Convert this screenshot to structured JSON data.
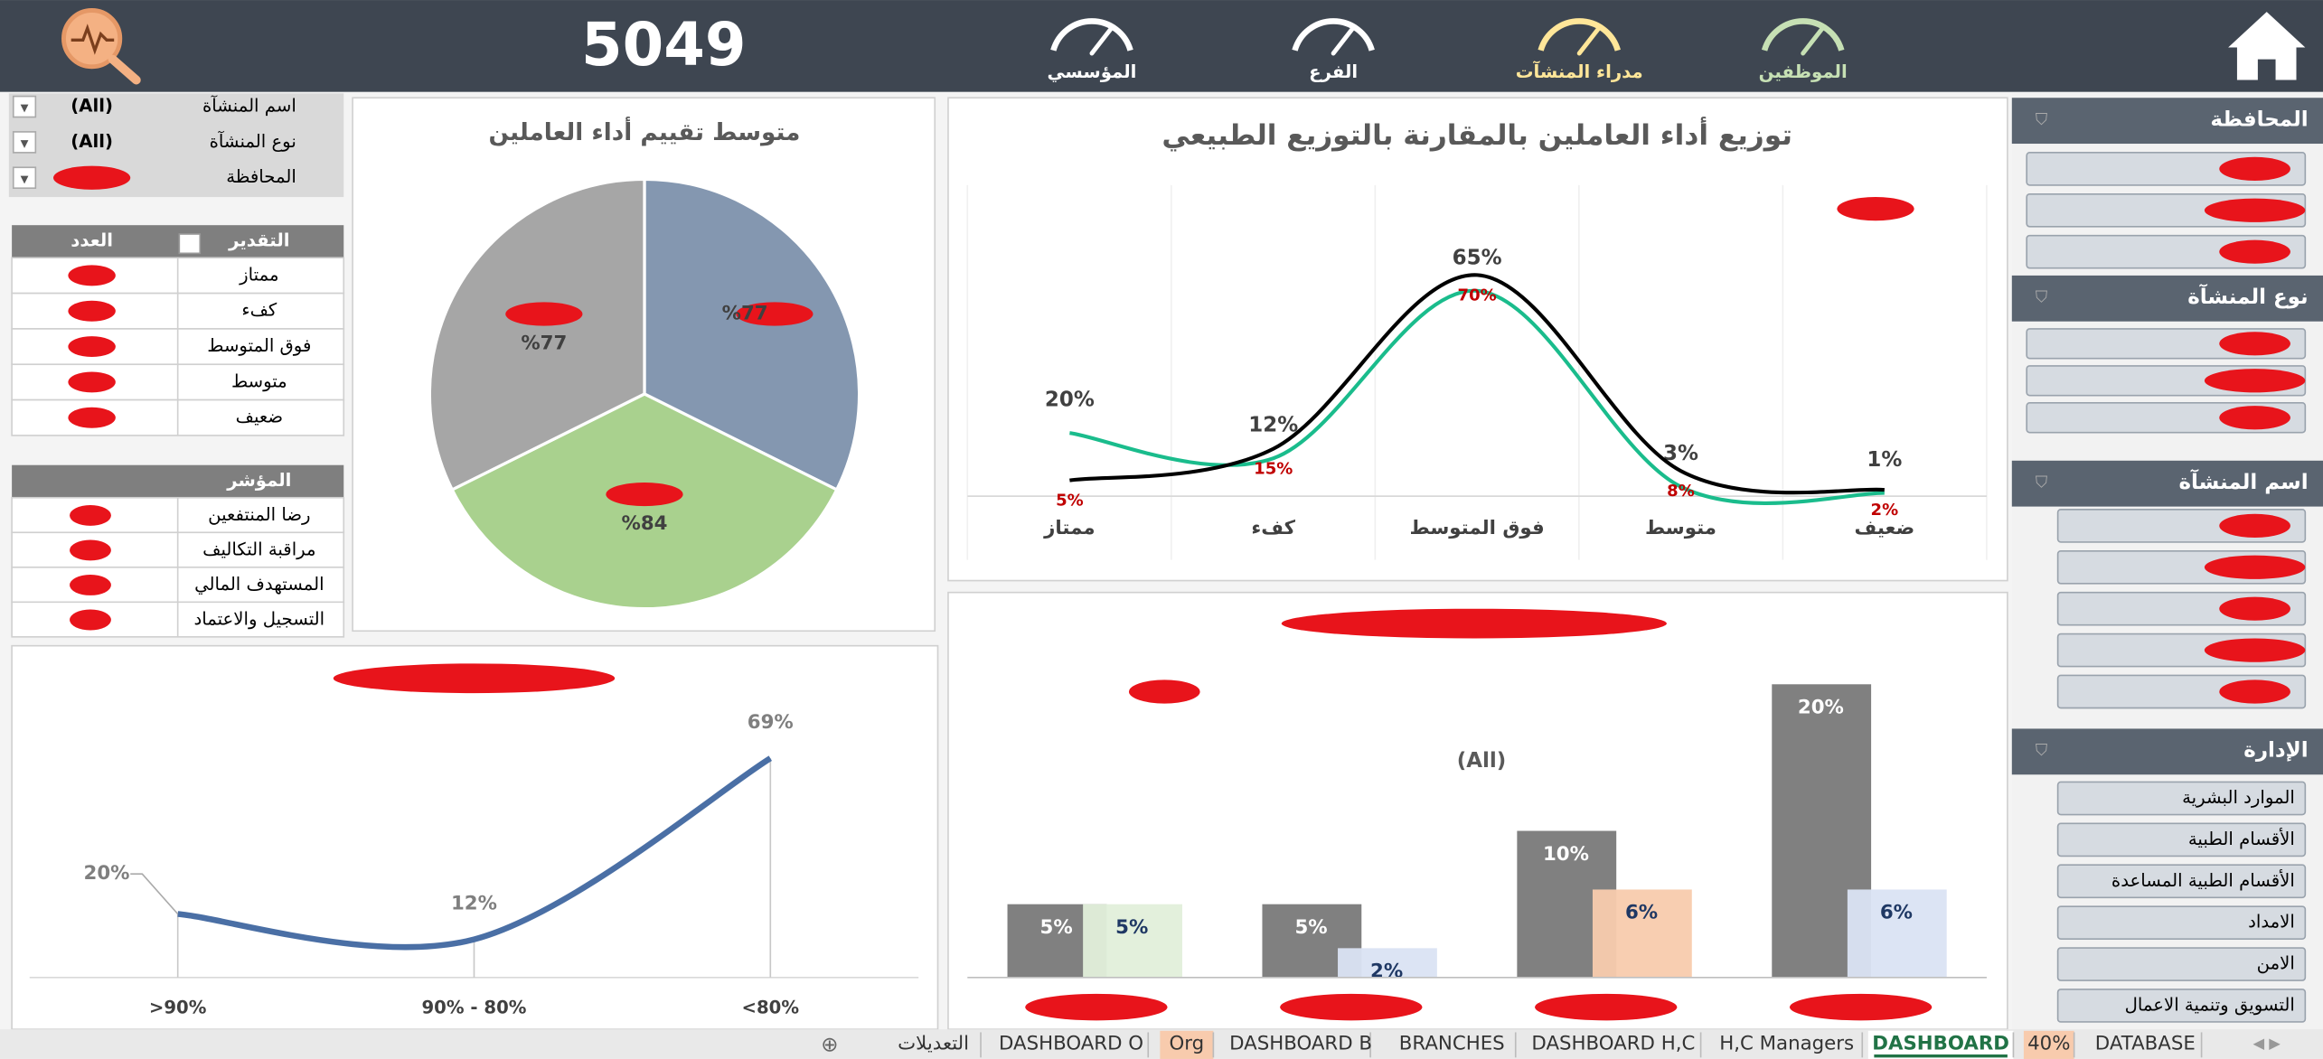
{
  "header": {
    "kpi": "5049",
    "nav": [
      {
        "label": "الموظفين",
        "color": "#c6e0b4"
      },
      {
        "label": "مدراء المنشآت",
        "color": "#ffe699"
      },
      {
        "label": "الفرع",
        "color": "#ffffff"
      },
      {
        "label": "المؤسسي",
        "color": "#ffffff"
      }
    ]
  },
  "filters": [
    {
      "label": "اسم المنشآة",
      "value": "(All)"
    },
    {
      "label": "نوع المنشآة",
      "value": "(All)"
    },
    {
      "label": "المحافظة"
    }
  ],
  "rating_table": {
    "headers": [
      "التقدير",
      "العدد"
    ],
    "rows": [
      "ممتاز",
      "كفء",
      "فوق المتوسط",
      "متوسط",
      "ضعيف"
    ]
  },
  "indicator_table": {
    "header": "المؤشر",
    "rows": [
      "رضا المنتفعين",
      "مراقبة التكاليف",
      "المستهدف المالي",
      "التسجيل والاعتماد"
    ]
  },
  "pie_chart": {
    "type": "pie",
    "title": "متوسط تقييم أداء العاملين",
    "values": [
      77,
      84,
      77
    ],
    "value_labels": [
      "%77",
      "%84",
      "%77"
    ],
    "colors": [
      "#8497b0",
      "#a9d18e",
      "#a6a6a6"
    ]
  },
  "distribution_chart": {
    "type": "line",
    "title": "توزيع أداء العاملين بالمقارنة بالتوزيع الطبيعي",
    "categories": [
      "ممتاز",
      "كفء",
      "فوق المتوسط",
      "متوسط",
      "ضعيف"
    ],
    "ylim": [
      0,
      75
    ],
    "series": [
      {
        "color": "#1abc8c",
        "label_color": "#404040",
        "values": [
          20,
          12,
          65,
          3,
          1
        ],
        "value_labels": [
          "20%",
          "12%",
          "65%",
          "3%",
          "1%"
        ]
      },
      {
        "color": "#000000",
        "label_color": "#c00000",
        "values": [
          5,
          15,
          70,
          8,
          2
        ],
        "value_labels": [
          "5%",
          "15%",
          "70%",
          "8%",
          "2%"
        ]
      }
    ]
  },
  "performance_chart": {
    "type": "line",
    "categories": [
      ">90%",
      "90% - 80%",
      "<80%"
    ],
    "values": [
      20,
      12,
      69
    ],
    "value_labels": [
      "20%",
      "12%",
      "69%"
    ],
    "color": "#4a6fa5",
    "ylim": [
      0,
      69
    ]
  },
  "comparison_chart": {
    "type": "bar",
    "subtitle": "(All)",
    "categories": [
      null,
      null,
      null,
      null
    ],
    "ylim": [
      0,
      20
    ],
    "series": [
      {
        "color": "#808080",
        "label_color": "#ffffff",
        "values": [
          5,
          5,
          10,
          20
        ],
        "value_labels": [
          "5%",
          "5%",
          "10%",
          "20%"
        ]
      },
      {
        "colors": [
          "#e2efda",
          "#dae3f3",
          "#f8cbad",
          "#dae3f3"
        ],
        "label_color": "#1f3864",
        "values": [
          5,
          2,
          6,
          6
        ],
        "value_labels": [
          "5%",
          "2%",
          "6%",
          "6%"
        ]
      }
    ]
  },
  "slicers": [
    {
      "title": "المحافظة"
    },
    {
      "title": "نوع المنشآة"
    },
    {
      "title": "اسم المنشآة"
    },
    {
      "title": "الإدارة",
      "items": [
        "الموارد البشرية",
        "الأقسام الطبية",
        "الأقسام الطبية المساعدة",
        "الامداد",
        "الامن",
        "التسويق وتنمية الاعمال"
      ]
    }
  ],
  "tabs": [
    {
      "label": "التعديلات"
    },
    {
      "label": "DASHBOARD O"
    },
    {
      "label": "Org",
      "color": "#f8cbad"
    },
    {
      "label": "DASHBOARD B"
    },
    {
      "label": "BRANCHES"
    },
    {
      "label": "DASHBOARD H,C"
    },
    {
      "label": "H,C Managers"
    },
    {
      "label": "DASHBOARD",
      "active": true
    },
    {
      "label": "40%",
      "color": "#f8cbad"
    },
    {
      "label": "DATABASE"
    }
  ]
}
